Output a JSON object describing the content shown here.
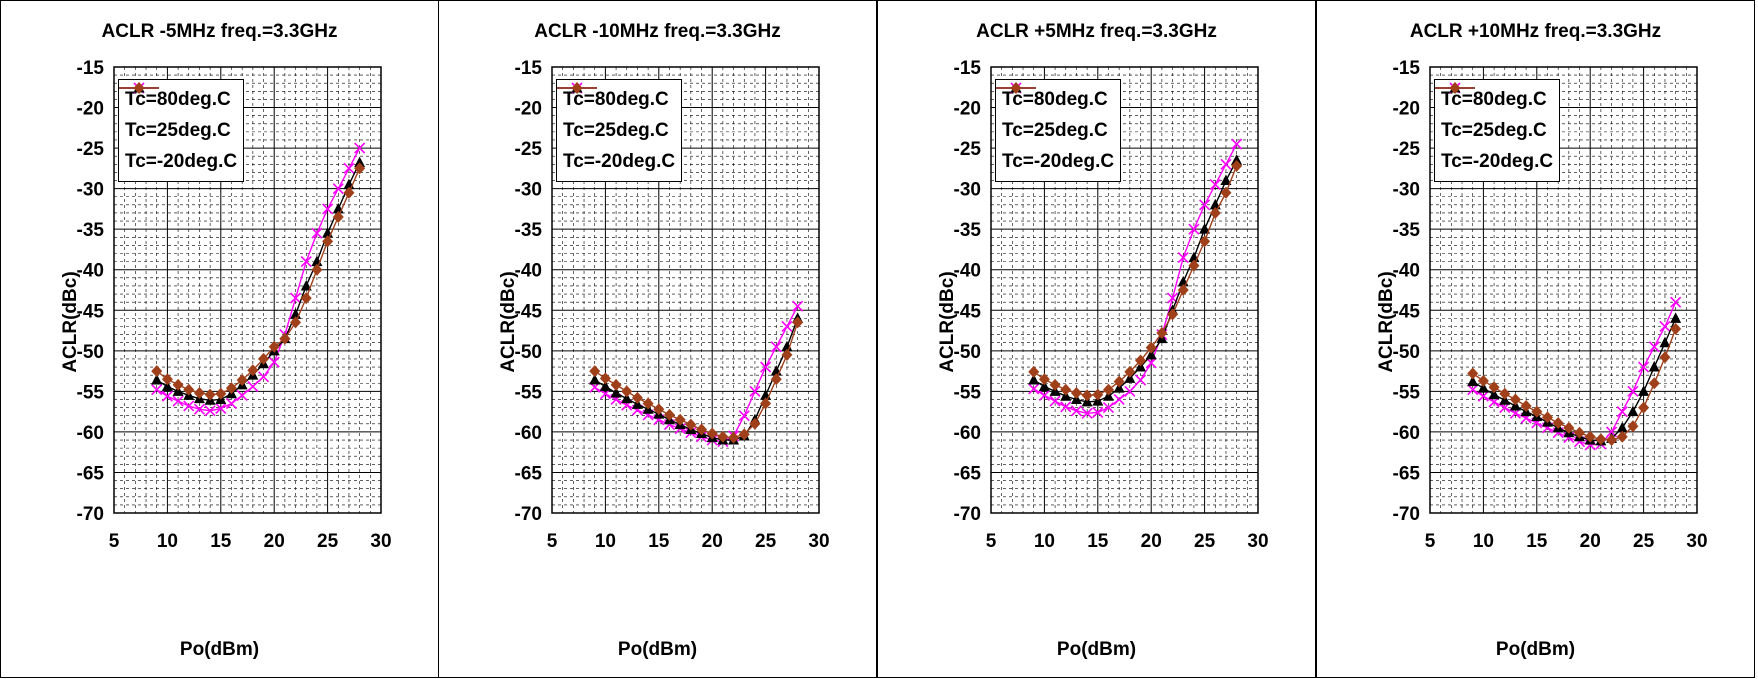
{
  "chart_data": [
    {
      "type": "line",
      "title": "ACLR -5MHz freq.=3.3GHz",
      "xlabel": "Po(dBm)",
      "ylabel": "ACLR(dBc)",
      "xlim": [
        5,
        30
      ],
      "ylim": [
        -70,
        -15
      ],
      "xticks": [
        5,
        10,
        15,
        20,
        25,
        30
      ],
      "yticks": [
        -15,
        -20,
        -25,
        -30,
        -35,
        -40,
        -45,
        -50,
        -55,
        -60,
        -65,
        -70
      ],
      "grid": true,
      "legend_position": "top-left",
      "x": [
        9,
        10,
        11,
        12,
        13,
        14,
        15,
        16,
        17,
        18,
        19,
        20,
        21,
        22,
        23,
        24,
        25,
        26,
        27,
        28
      ],
      "series": [
        {
          "name": "Tc=80deg.C",
          "color": "#ff00ff",
          "marker": "x",
          "values": [
            -54.8,
            -55.6,
            -56.2,
            -56.8,
            -57.2,
            -57.4,
            -57.1,
            -56.5,
            -55.5,
            -54.4,
            -53.2,
            -51.4,
            -48.0,
            -43.5,
            -39.0,
            -35.5,
            -32.5,
            -30.0,
            -27.5,
            -25.0
          ]
        },
        {
          "name": "Tc=25deg.C",
          "color": "#000000",
          "marker": "triangle",
          "values": [
            -53.6,
            -54.4,
            -55.0,
            -55.5,
            -55.9,
            -56.1,
            -56.0,
            -55.3,
            -54.2,
            -53.0,
            -51.6,
            -50.0,
            -48.5,
            -45.5,
            -42.0,
            -39.0,
            -35.5,
            -32.5,
            -29.5,
            -26.8
          ]
        },
        {
          "name": "Tc=-20deg.C",
          "color": "#a0401a",
          "marker": "diamond",
          "values": [
            -52.5,
            -53.5,
            -54.2,
            -54.8,
            -55.2,
            -55.4,
            -55.3,
            -54.6,
            -53.6,
            -52.4,
            -51.0,
            -49.5,
            -48.5,
            -46.5,
            -43.5,
            -40.0,
            -36.5,
            -33.5,
            -30.5,
            -27.5
          ]
        }
      ]
    },
    {
      "type": "line",
      "title": "ACLR -10MHz freq.=3.3GHz",
      "xlabel": "Po(dBm)",
      "ylabel": "ACLR(dBc)",
      "xlim": [
        5,
        30
      ],
      "ylim": [
        -70,
        -15
      ],
      "xticks": [
        5,
        10,
        15,
        20,
        25,
        30
      ],
      "yticks": [
        -15,
        -20,
        -25,
        -30,
        -35,
        -40,
        -45,
        -50,
        -55,
        -60,
        -65,
        -70
      ],
      "grid": true,
      "legend_position": "top-left",
      "x": [
        9,
        10,
        11,
        12,
        13,
        14,
        15,
        16,
        17,
        18,
        19,
        20,
        21,
        22,
        23,
        24,
        25,
        26,
        27,
        28
      ],
      "series": [
        {
          "name": "Tc=80deg.C",
          "color": "#ff00ff",
          "marker": "x",
          "values": [
            -54.5,
            -55.3,
            -56.0,
            -56.7,
            -57.3,
            -57.9,
            -58.5,
            -59.1,
            -59.6,
            -60.1,
            -60.6,
            -61.0,
            -61.2,
            -60.5,
            -58.0,
            -55.0,
            -52.0,
            -49.5,
            -47.0,
            -44.5
          ]
        },
        {
          "name": "Tc=25deg.C",
          "color": "#000000",
          "marker": "triangle",
          "values": [
            -53.6,
            -54.4,
            -55.2,
            -55.9,
            -56.6,
            -57.2,
            -57.8,
            -58.5,
            -59.1,
            -59.7,
            -60.2,
            -60.7,
            -61.0,
            -61.0,
            -60.5,
            -58.5,
            -55.5,
            -52.5,
            -49.5,
            -46.0
          ]
        },
        {
          "name": "Tc=-20deg.C",
          "color": "#a0401a",
          "marker": "diamond",
          "values": [
            -52.5,
            -53.4,
            -54.2,
            -55.0,
            -55.8,
            -56.5,
            -57.2,
            -57.9,
            -58.5,
            -59.1,
            -59.7,
            -60.2,
            -60.6,
            -60.7,
            -60.3,
            -59.0,
            -56.5,
            -53.5,
            -50.5,
            -46.5
          ]
        }
      ]
    },
    {
      "type": "line",
      "title": "ACLR +5MHz freq.=3.3GHz",
      "xlabel": "Po(dBm)",
      "ylabel": "ACLR(dBc)",
      "xlim": [
        5,
        30
      ],
      "ylim": [
        -70,
        -15
      ],
      "xticks": [
        5,
        10,
        15,
        20,
        25,
        30
      ],
      "yticks": [
        -15,
        -20,
        -25,
        -30,
        -35,
        -40,
        -45,
        -50,
        -55,
        -60,
        -65,
        -70
      ],
      "grid": true,
      "legend_position": "top-left",
      "x": [
        9,
        10,
        11,
        12,
        13,
        14,
        15,
        16,
        17,
        18,
        19,
        20,
        21,
        22,
        23,
        24,
        25,
        26,
        27,
        28
      ],
      "series": [
        {
          "name": "Tc=80deg.C",
          "color": "#ff00ff",
          "marker": "x",
          "values": [
            -54.7,
            -55.5,
            -56.2,
            -56.9,
            -57.4,
            -57.7,
            -57.6,
            -57.0,
            -56.0,
            -55.0,
            -53.6,
            -51.5,
            -48.0,
            -43.5,
            -38.5,
            -35.0,
            -32.0,
            -29.5,
            -27.0,
            -24.5
          ]
        },
        {
          "name": "Tc=25deg.C",
          "color": "#000000",
          "marker": "triangle",
          "values": [
            -53.6,
            -54.4,
            -55.0,
            -55.6,
            -56.0,
            -56.3,
            -56.2,
            -55.6,
            -54.6,
            -53.4,
            -52.0,
            -50.5,
            -48.5,
            -45.0,
            -41.5,
            -38.5,
            -35.0,
            -32.0,
            -29.0,
            -26.5
          ]
        },
        {
          "name": "Tc=-20deg.C",
          "color": "#a0401a",
          "marker": "diamond",
          "values": [
            -52.6,
            -53.5,
            -54.2,
            -54.8,
            -55.2,
            -55.5,
            -55.4,
            -54.8,
            -53.8,
            -52.6,
            -51.2,
            -49.6,
            -47.8,
            -45.5,
            -42.5,
            -39.5,
            -36.5,
            -33.0,
            -30.5,
            -27.2
          ]
        }
      ]
    },
    {
      "type": "line",
      "title": "ACLR +10MHz freq.=3.3GHz",
      "xlabel": "Po(dBm)",
      "ylabel": "ACLR(dBc)",
      "xlim": [
        5,
        30
      ],
      "ylim": [
        -70,
        -15
      ],
      "xticks": [
        5,
        10,
        15,
        20,
        25,
        30
      ],
      "yticks": [
        -15,
        -20,
        -25,
        -30,
        -35,
        -40,
        -45,
        -50,
        -55,
        -60,
        -65,
        -70
      ],
      "grid": true,
      "legend_position": "top-left",
      "x": [
        9,
        10,
        11,
        12,
        13,
        14,
        15,
        16,
        17,
        18,
        19,
        20,
        21,
        22,
        23,
        24,
        25,
        26,
        27,
        28
      ],
      "series": [
        {
          "name": "Tc=80deg.C",
          "color": "#ff00ff",
          "marker": "x",
          "values": [
            -54.8,
            -55.6,
            -56.3,
            -57.0,
            -57.7,
            -58.3,
            -58.9,
            -59.5,
            -60.1,
            -60.7,
            -61.2,
            -61.6,
            -61.5,
            -60.0,
            -57.5,
            -55.0,
            -52.0,
            -49.5,
            -47.0,
            -44.0
          ]
        },
        {
          "name": "Tc=25deg.C",
          "color": "#000000",
          "marker": "triangle",
          "values": [
            -53.8,
            -54.6,
            -55.4,
            -56.1,
            -56.8,
            -57.5,
            -58.1,
            -58.8,
            -59.5,
            -60.1,
            -60.6,
            -61.0,
            -61.1,
            -60.8,
            -59.5,
            -57.5,
            -55.0,
            -52.0,
            -49.0,
            -46.0
          ]
        },
        {
          "name": "Tc=-20deg.C",
          "color": "#a0401a",
          "marker": "diamond",
          "values": [
            -52.8,
            -53.7,
            -54.5,
            -55.3,
            -56.0,
            -56.8,
            -57.5,
            -58.2,
            -58.9,
            -59.5,
            -60.1,
            -60.6,
            -60.9,
            -61.0,
            -60.6,
            -59.3,
            -57.0,
            -54.0,
            -50.8,
            -47.3
          ]
        }
      ]
    }
  ]
}
